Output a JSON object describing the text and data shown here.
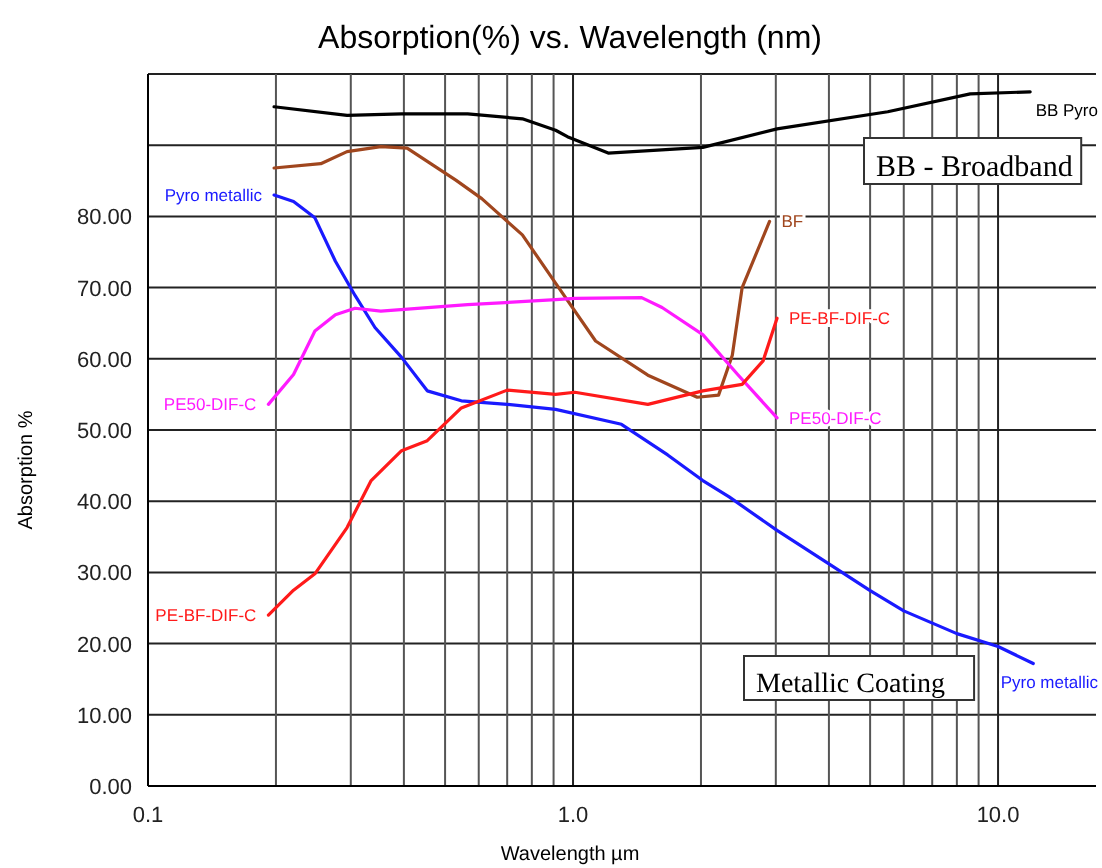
{
  "chart_data": {
    "type": "line",
    "title": "Absorption(%) vs. Wavelength (nm)",
    "xlabel": "Wavelength µm",
    "ylabel": "Absorption %",
    "log": "x",
    "grid": true,
    "marker": "none",
    "line_style": "solid",
    "xlim": [
      0.1,
      17
    ],
    "ylim": [
      0,
      100
    ],
    "xticks": [
      {
        "value": 0.1,
        "label": "0.1"
      },
      {
        "value": 0.2,
        "label": null
      },
      {
        "value": 0.3,
        "label": null
      },
      {
        "value": 0.4,
        "label": null
      },
      {
        "value": 0.5,
        "label": null
      },
      {
        "value": 0.6,
        "label": null
      },
      {
        "value": 0.7,
        "label": null
      },
      {
        "value": 0.8,
        "label": null
      },
      {
        "value": 0.9,
        "label": null
      },
      {
        "value": 1,
        "label": "1.0"
      },
      {
        "value": 2,
        "label": null
      },
      {
        "value": 3,
        "label": null
      },
      {
        "value": 4,
        "label": null
      },
      {
        "value": 5,
        "label": null
      },
      {
        "value": 6,
        "label": null
      },
      {
        "value": 7,
        "label": null
      },
      {
        "value": 8,
        "label": null
      },
      {
        "value": 9,
        "label": null
      },
      {
        "value": 10,
        "label": "10.0"
      }
    ],
    "yticks": [
      {
        "value": 0,
        "label": "0.00"
      },
      {
        "value": 10,
        "label": "10.00"
      },
      {
        "value": 20,
        "label": "20.00"
      },
      {
        "value": 30,
        "label": "30.00"
      },
      {
        "value": 40,
        "label": "40.00"
      },
      {
        "value": 50,
        "label": "50.00"
      },
      {
        "value": 60,
        "label": "60.00"
      },
      {
        "value": 70,
        "label": "70.00"
      },
      {
        "value": 80,
        "label": "80.00"
      },
      {
        "value": 90,
        "label": null
      },
      {
        "value": 100,
        "label": null
      }
    ],
    "annotations": [
      "BB - Broadband",
      "Metallic Coating"
    ],
    "series": [
      {
        "name": "BB Pyro",
        "color": "#000000",
        "x": [
          0.198,
          0.294,
          0.395,
          0.565,
          0.76,
          0.91,
          0.97,
          1.21,
          2.02,
          3.02,
          5.5,
          8.6,
          11.9
        ],
        "values": [
          95.4,
          94.2,
          94.4,
          94.4,
          93.7,
          92.1,
          91.2,
          88.9,
          89.7,
          92.3,
          94.7,
          97.2,
          97.5
        ]
      },
      {
        "name": "BF",
        "color": "#a0461e",
        "x": [
          0.198,
          0.255,
          0.294,
          0.353,
          0.407,
          0.53,
          0.61,
          0.76,
          0.92,
          1.13,
          1.5,
          1.96,
          2.2,
          2.37,
          2.5,
          2.9
        ],
        "values": [
          86.8,
          87.4,
          89.1,
          89.8,
          89.6,
          85.1,
          82.5,
          77.4,
          70.2,
          62.5,
          57.7,
          54.6,
          54.9,
          60.5,
          70,
          79.3
        ]
      },
      {
        "name": "Pyro metallic",
        "color": "#1a1aff",
        "x": [
          0.198,
          0.22,
          0.247,
          0.276,
          0.307,
          0.342,
          0.395,
          0.454,
          0.546,
          0.7,
          0.91,
          1.3,
          1.67,
          2.02,
          2.33,
          3.02,
          4.0,
          4.98,
          6.0,
          8.0,
          10,
          12.1
        ],
        "values": [
          83,
          82.1,
          79.8,
          73.7,
          68.9,
          64.4,
          60.2,
          55.5,
          54.1,
          53.6,
          52.9,
          50.8,
          46.5,
          42.9,
          40.6,
          35.9,
          31.2,
          27.5,
          24.6,
          21.4,
          19.6,
          17.2
        ]
      },
      {
        "name": "PE50-DIF-C",
        "color": "#ff1aff",
        "x": [
          0.192,
          0.22,
          0.247,
          0.276,
          0.307,
          0.353,
          0.565,
          0.91,
          1.01,
          1.45,
          1.62,
          2.02,
          2.44,
          3.02
        ],
        "values": [
          53.6,
          57.8,
          63.9,
          66.2,
          67.1,
          66.7,
          67.6,
          68.3,
          68.5,
          68.6,
          67.2,
          63.4,
          57.8,
          51.7
        ]
      },
      {
        "name": "PE-BF-DIF-C",
        "color": "#ff1a1a",
        "x": [
          0.192,
          0.22,
          0.247,
          0.294,
          0.335,
          0.395,
          0.454,
          0.546,
          0.7,
          0.91,
          1.01,
          1.5,
          2.02,
          2.5,
          2.8,
          3.02
        ],
        "values": [
          24,
          27.5,
          29.8,
          36.3,
          42.9,
          47.1,
          48.5,
          53.1,
          55.6,
          55,
          55.3,
          53.6,
          55.5,
          56.4,
          59.7,
          65.7
        ]
      }
    ]
  }
}
